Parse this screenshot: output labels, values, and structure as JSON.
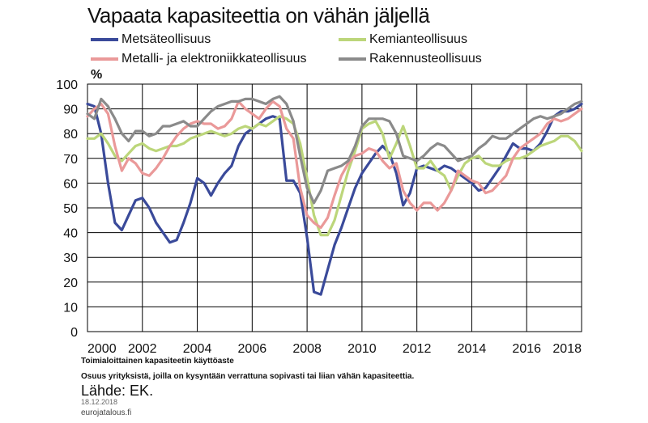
{
  "chart_data": {
    "type": "line",
    "title": "Vapaata kapasiteettia on vähän jäljellä",
    "unit_label": "%",
    "xlabel": "",
    "ylabel": "%",
    "xlim": [
      2000,
      2018
    ],
    "ylim": [
      0,
      100
    ],
    "x_ticks": [
      "2000",
      "2002",
      "2004",
      "2006",
      "2008",
      "2010",
      "2012",
      "2014",
      "2016",
      "2018"
    ],
    "y_ticks": [
      "0",
      "10",
      "20",
      "30",
      "40",
      "50",
      "60",
      "70",
      "80",
      "90",
      "100"
    ],
    "grid": true,
    "legend_position": "top",
    "series": [
      {
        "name": "Metsäteollisuus",
        "color": "#3a4a9a",
        "x": [
          2000,
          2000.25,
          2000.5,
          2000.75,
          2001,
          2001.25,
          2001.5,
          2001.75,
          2002,
          2002.25,
          2002.5,
          2002.75,
          2003,
          2003.25,
          2003.5,
          2003.75,
          2004,
          2004.25,
          2004.5,
          2004.75,
          2005,
          2005.25,
          2005.5,
          2005.75,
          2006,
          2006.25,
          2006.5,
          2006.75,
          2007,
          2007.25,
          2007.5,
          2007.75,
          2008,
          2008.25,
          2008.5,
          2008.75,
          2009,
          2009.25,
          2009.5,
          2009.75,
          2010,
          2010.25,
          2010.5,
          2010.75,
          2011,
          2011.25,
          2011.5,
          2011.75,
          2012,
          2012.25,
          2012.5,
          2012.75,
          2013,
          2013.25,
          2013.5,
          2013.75,
          2014,
          2014.25,
          2014.5,
          2014.75,
          2015,
          2015.25,
          2015.5,
          2015.75,
          2016,
          2016.25,
          2016.5,
          2016.75,
          2017,
          2017.25,
          2017.5,
          2017.75,
          2018
        ],
        "values": [
          92,
          91,
          80,
          60,
          44,
          41,
          47,
          53,
          54,
          50,
          44,
          40,
          36,
          37,
          44,
          52,
          62,
          60,
          55,
          60,
          64,
          67,
          75,
          80,
          82,
          84,
          86,
          87,
          86,
          61,
          61,
          56,
          38,
          16,
          15,
          25,
          35,
          42,
          50,
          58,
          64,
          68,
          72,
          75,
          72,
          64,
          51,
          56,
          66,
          67,
          66,
          65,
          67,
          66,
          64,
          62,
          60,
          57,
          58,
          62,
          66,
          71,
          76,
          74,
          74,
          73,
          76,
          81,
          87,
          89,
          89,
          90,
          92
        ]
      },
      {
        "name": "Kemianteollisuus",
        "color": "#bcd67a",
        "x": [
          2000,
          2000.25,
          2000.5,
          2000.75,
          2001,
          2001.25,
          2001.5,
          2001.75,
          2002,
          2002.25,
          2002.5,
          2002.75,
          2003,
          2003.25,
          2003.5,
          2003.75,
          2004,
          2004.25,
          2004.5,
          2004.75,
          2005,
          2005.25,
          2005.5,
          2005.75,
          2006,
          2006.25,
          2006.5,
          2006.75,
          2007,
          2007.25,
          2007.5,
          2007.75,
          2008,
          2008.25,
          2008.5,
          2008.75,
          2009,
          2009.25,
          2009.5,
          2009.75,
          2010,
          2010.25,
          2010.5,
          2010.75,
          2011,
          2011.25,
          2011.5,
          2011.75,
          2012,
          2012.25,
          2012.5,
          2012.75,
          2013,
          2013.25,
          2013.5,
          2013.75,
          2014,
          2014.25,
          2014.5,
          2014.75,
          2015,
          2015.25,
          2015.5,
          2015.75,
          2016,
          2016.25,
          2016.5,
          2016.75,
          2017,
          2017.25,
          2017.5,
          2017.75,
          2018
        ],
        "values": [
          78,
          78,
          80,
          76,
          71,
          69,
          72,
          75,
          76,
          74,
          73,
          74,
          75,
          75,
          76,
          78,
          79,
          80,
          81,
          80,
          79,
          80,
          82,
          83,
          82,
          84,
          83,
          85,
          87,
          86,
          84,
          76,
          62,
          47,
          39,
          39,
          45,
          55,
          65,
          73,
          82,
          84,
          85,
          80,
          70,
          76,
          83,
          75,
          66,
          66,
          69,
          65,
          63,
          57,
          63,
          68,
          70,
          71,
          68,
          67,
          67,
          69,
          70,
          70,
          71,
          73,
          75,
          76,
          77,
          79,
          79,
          77,
          73
        ]
      },
      {
        "name": "Metalli- ja elektroniikkateollisuus",
        "color": "#ea9999",
        "x": [
          2000,
          2000.25,
          2000.5,
          2000.75,
          2001,
          2001.25,
          2001.5,
          2001.75,
          2002,
          2002.25,
          2002.5,
          2002.75,
          2003,
          2003.25,
          2003.5,
          2003.75,
          2004,
          2004.25,
          2004.5,
          2004.75,
          2005,
          2005.25,
          2005.5,
          2005.75,
          2006,
          2006.25,
          2006.5,
          2006.75,
          2007,
          2007.25,
          2007.5,
          2007.75,
          2008,
          2008.25,
          2008.5,
          2008.75,
          2009,
          2009.25,
          2009.5,
          2009.75,
          2010,
          2010.25,
          2010.5,
          2010.75,
          2011,
          2011.25,
          2011.5,
          2011.75,
          2012,
          2012.25,
          2012.5,
          2012.75,
          2013,
          2013.25,
          2013.5,
          2013.75,
          2014,
          2014.25,
          2014.5,
          2014.75,
          2015,
          2015.25,
          2015.5,
          2015.75,
          2016,
          2016.25,
          2016.5,
          2016.75,
          2017,
          2017.25,
          2017.5,
          2017.75,
          2018
        ],
        "values": [
          87,
          90,
          92,
          88,
          75,
          65,
          70,
          68,
          64,
          63,
          66,
          70,
          75,
          79,
          82,
          84,
          85,
          84,
          84,
          82,
          83,
          86,
          93,
          90,
          88,
          86,
          90,
          93,
          91,
          82,
          78,
          58,
          47,
          44,
          42,
          46,
          55,
          63,
          68,
          71,
          72,
          74,
          73,
          69,
          66,
          68,
          57,
          52,
          49,
          52,
          52,
          49,
          52,
          57,
          65,
          63,
          61,
          60,
          56,
          57,
          60,
          63,
          70,
          74,
          76,
          78,
          80,
          84,
          86,
          85,
          86,
          88,
          90
        ]
      },
      {
        "name": "Rakennusteollisuus",
        "color": "#8a8a8a",
        "x": [
          2000,
          2000.25,
          2000.5,
          2000.75,
          2001,
          2001.25,
          2001.5,
          2001.75,
          2002,
          2002.25,
          2002.5,
          2002.75,
          2003,
          2003.25,
          2003.5,
          2003.75,
          2004,
          2004.25,
          2004.5,
          2004.75,
          2005,
          2005.25,
          2005.5,
          2005.75,
          2006,
          2006.25,
          2006.5,
          2006.75,
          2007,
          2007.25,
          2007.5,
          2007.75,
          2008,
          2008.25,
          2008.5,
          2008.75,
          2009,
          2009.25,
          2009.5,
          2009.75,
          2010,
          2010.25,
          2010.5,
          2010.75,
          2011,
          2011.25,
          2011.5,
          2011.75,
          2012,
          2012.25,
          2012.5,
          2012.75,
          2013,
          2013.25,
          2013.5,
          2013.75,
          2014,
          2014.25,
          2014.5,
          2014.75,
          2015,
          2015.25,
          2015.5,
          2015.75,
          2016,
          2016.25,
          2016.5,
          2016.75,
          2017,
          2017.25,
          2017.5,
          2017.75,
          2018
        ],
        "values": [
          88,
          86,
          94,
          91,
          86,
          80,
          77,
          81,
          81,
          79,
          80,
          83,
          83,
          84,
          85,
          83,
          83,
          86,
          89,
          91,
          92,
          93,
          93,
          94,
          94,
          93,
          92,
          94,
          95,
          92,
          85,
          71,
          58,
          52,
          57,
          65,
          66,
          67,
          69,
          75,
          83,
          86,
          86,
          86,
          85,
          80,
          71,
          70,
          69,
          71,
          74,
          76,
          75,
          72,
          69,
          70,
          71,
          74,
          76,
          79,
          78,
          78,
          80,
          82,
          84,
          86,
          87,
          86,
          87,
          88,
          90,
          92,
          93
        ]
      }
    ]
  },
  "notes": {
    "line1": "Toimialoittainen kapasiteetin käyttöaste",
    "line2": "Osuus yrityksistä, joilla on kysyntään verrattuna sopivasti tai liian vähän kapasiteettia."
  },
  "source": "Lähde: EK.",
  "date": "18.12.2018",
  "site": "eurojatalous.fi"
}
